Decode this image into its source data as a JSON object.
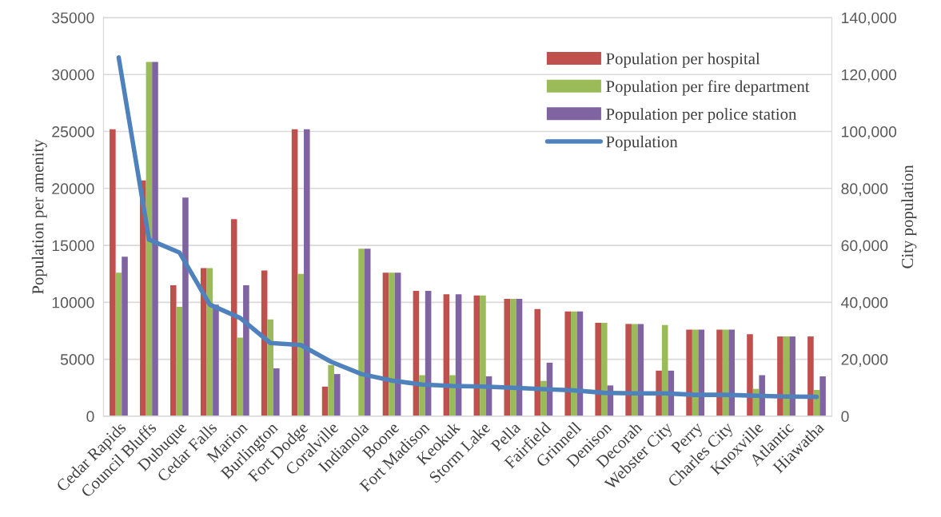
{
  "chart_data": {
    "type": "bar",
    "ylabel": "Population per amenity",
    "y2label": "City population",
    "categories": [
      "Cedar Rapids",
      "Council Bluffs",
      "Dubuque",
      "Cedar Falls",
      "Marion",
      "Burlington",
      "Fort Dodge",
      "Coralville",
      "Indianola",
      "Boone",
      "Fort Madison",
      "Keokuk",
      "Storm Lake",
      "Pella",
      "Fairfield",
      "Grinnell",
      "Denison",
      "Decorah",
      "Webster City",
      "Perry",
      "Charles City",
      "Knoxville",
      "Atlantic",
      "Hiawatha"
    ],
    "series": [
      {
        "name": "Population per hospital",
        "color": "#c0504d",
        "values": [
          25200,
          20700,
          11500,
          13000,
          17300,
          12800,
          25200,
          2600,
          0,
          12600,
          11000,
          10700,
          10600,
          10300,
          9400,
          9200,
          8200,
          8100,
          4000,
          7600,
          7600,
          7200,
          7000,
          7000
        ]
      },
      {
        "name": "Population per fire department",
        "color": "#9bbb59",
        "values": [
          12600,
          31100,
          9600,
          13000,
          6900,
          8500,
          12500,
          4500,
          14700,
          12600,
          3600,
          3600,
          10600,
          10300,
          3100,
          9200,
          8200,
          8100,
          8000,
          7600,
          7600,
          2400,
          7000,
          2300
        ]
      },
      {
        "name": "Population per police station",
        "color": "#8064a2",
        "values": [
          14000,
          31100,
          19200,
          9800,
          11500,
          4200,
          25200,
          3700,
          14700,
          12600,
          11000,
          10700,
          3500,
          10300,
          4700,
          9200,
          2700,
          8100,
          4000,
          7600,
          7600,
          3600,
          7000,
          3500
        ]
      },
      {
        "name": "Population",
        "type": "line",
        "axis": "y2",
        "color": "#4f81bd",
        "values": [
          126000,
          62000,
          57500,
          39200,
          34500,
          25700,
          25000,
          19100,
          14800,
          12500,
          11100,
          10600,
          10400,
          10000,
          9500,
          9100,
          8200,
          8000,
          8000,
          7500,
          7500,
          7200,
          6900,
          6800
        ]
      }
    ],
    "ylim": [
      0,
      35000
    ],
    "yticks": [
      0,
      5000,
      10000,
      15000,
      20000,
      25000,
      30000,
      35000
    ],
    "y2lim": [
      0,
      140000
    ],
    "y2ticks": [
      {
        "value": 0,
        "label": "0"
      },
      {
        "value": 20000,
        "label": "20,000"
      },
      {
        "value": 40000,
        "label": "40,000"
      },
      {
        "value": 60000,
        "label": "60,000"
      },
      {
        "value": 80000,
        "label": "80,000"
      },
      {
        "value": 100000,
        "label": "100,000"
      },
      {
        "value": 120000,
        "label": "120,000"
      },
      {
        "value": 140000,
        "label": "140,000"
      }
    ],
    "grid": "y",
    "legend": "top right"
  }
}
